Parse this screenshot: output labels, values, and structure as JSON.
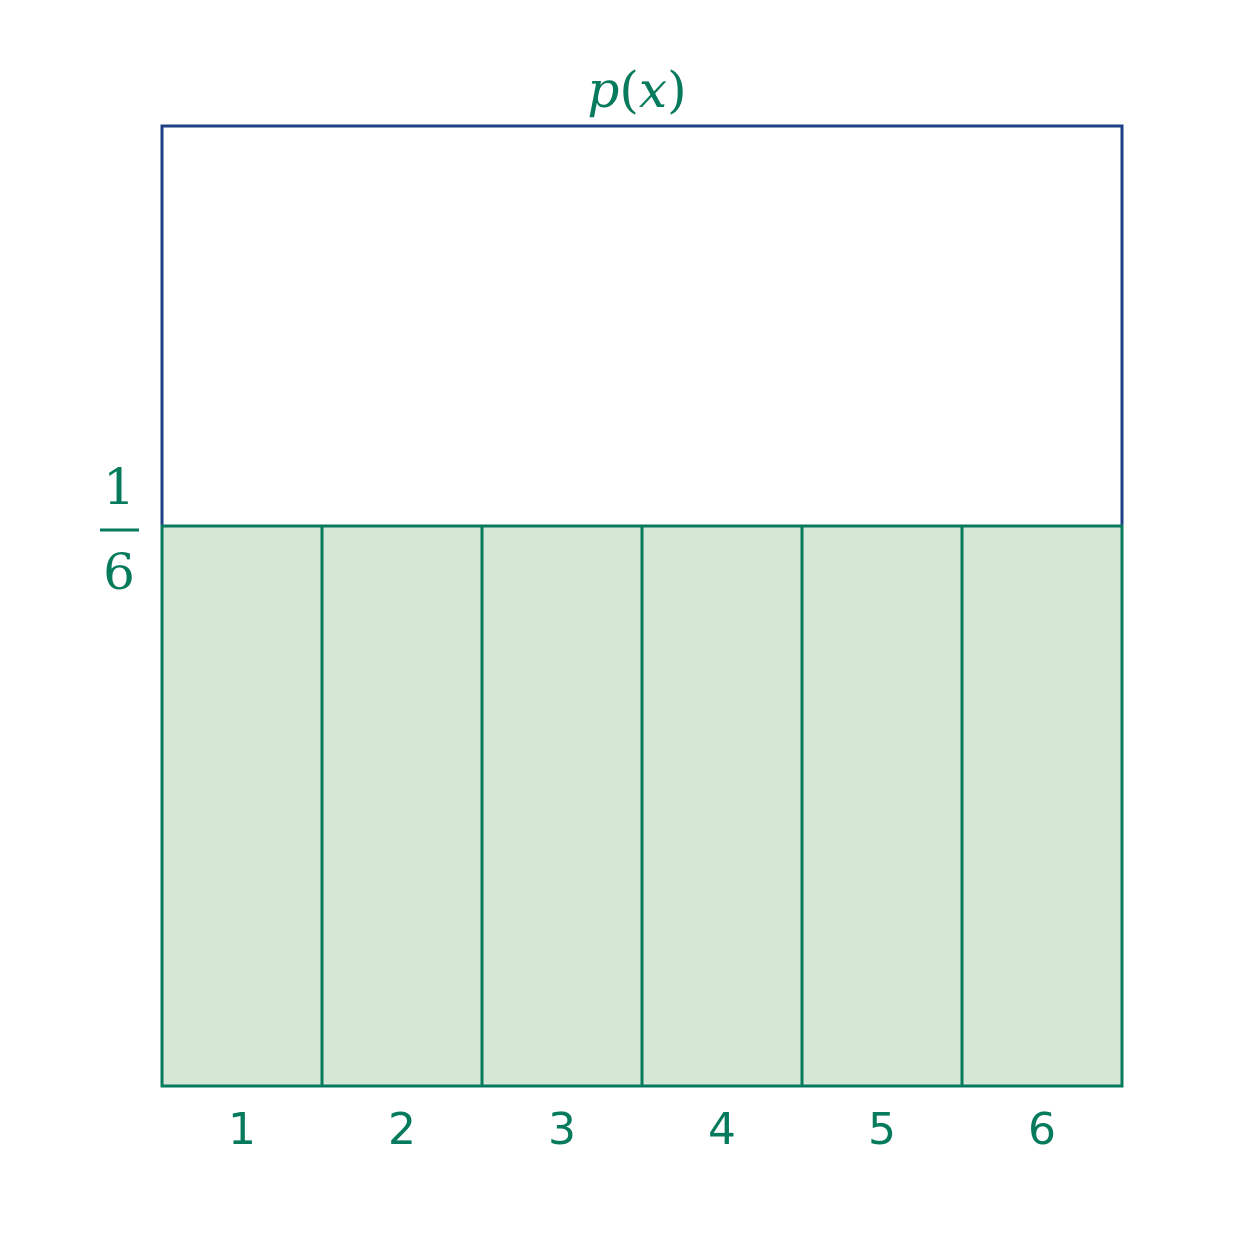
{
  "chart_data": {
    "type": "bar",
    "title": "p(x)",
    "title_parts": {
      "func": "p",
      "open": "(",
      "var": "x",
      "close": ")"
    },
    "categories": [
      "1",
      "2",
      "3",
      "4",
      "5",
      "6"
    ],
    "values": [
      0.16666666666666666,
      0.16666666666666666,
      0.16666666666666666,
      0.16666666666666666,
      0.16666666666666666,
      0.16666666666666666
    ],
    "ylim": [
      0,
      0.2857142857142857
    ],
    "y_tick_label": {
      "numerator": "1",
      "denominator": "6",
      "value": 0.16666666666666666
    },
    "xlabel": "",
    "ylabel": "",
    "grid": false,
    "legend": "none"
  },
  "colors": {
    "text": "#067a5c",
    "bar_fill": "#d6e8d5",
    "bar_stroke": "#067a5c",
    "frame_stroke": "#1f3f87"
  }
}
